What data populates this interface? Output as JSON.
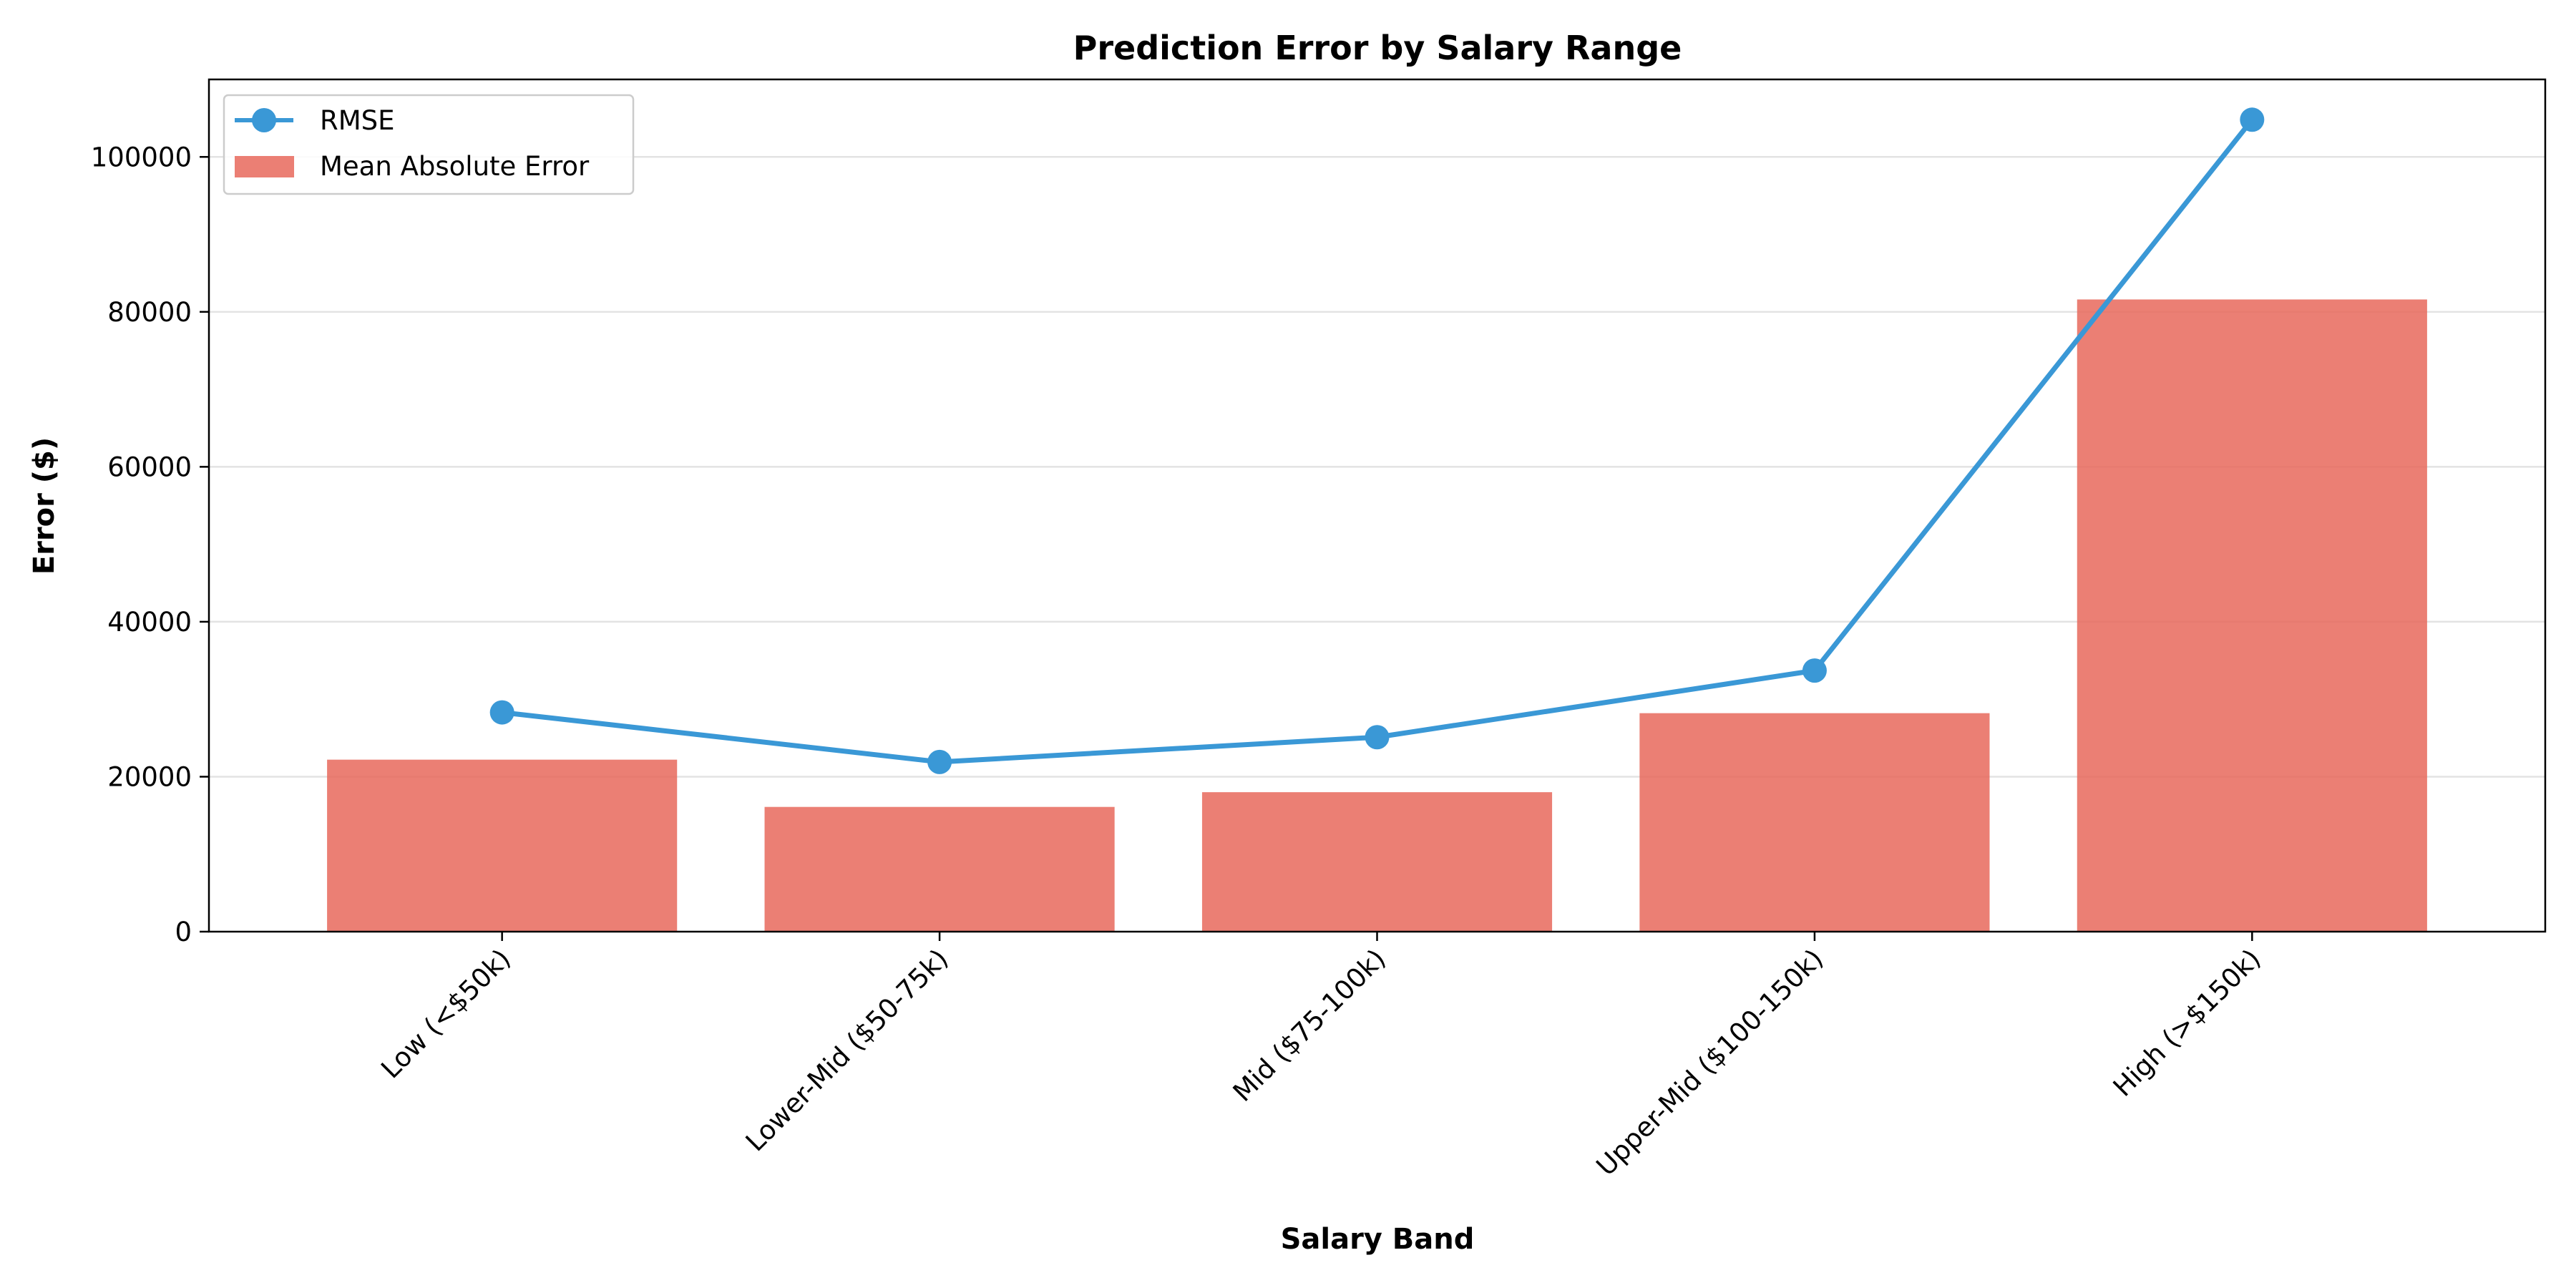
{
  "chart_data": {
    "type": "bar",
    "title": "Prediction Error by Salary Range",
    "xlabel": "Salary Band",
    "ylabel": "Error ($)",
    "categories": [
      "Low (<$50k)",
      "Lower-Mid ($50-75k)",
      "Mid ($75-100k)",
      "Upper-Mid ($100-150k)",
      "High (>$150k)"
    ],
    "series": [
      {
        "name": "Mean Absolute Error",
        "type": "bar",
        "color": "#e8695c",
        "values": [
          22200,
          16100,
          18000,
          28200,
          81600
        ]
      },
      {
        "name": "RMSE",
        "type": "line",
        "color": "#3a98d6",
        "values": [
          28300,
          21900,
          25100,
          33700,
          104800
        ]
      }
    ],
    "ylim": [
      0,
      110000
    ],
    "yticks": [
      0,
      20000,
      40000,
      60000,
      80000,
      100000
    ],
    "ytick_labels": [
      "0",
      "20000",
      "40000",
      "60000",
      "80000",
      "100000"
    ],
    "grid": "horizontal",
    "legend_position": "top-left"
  }
}
